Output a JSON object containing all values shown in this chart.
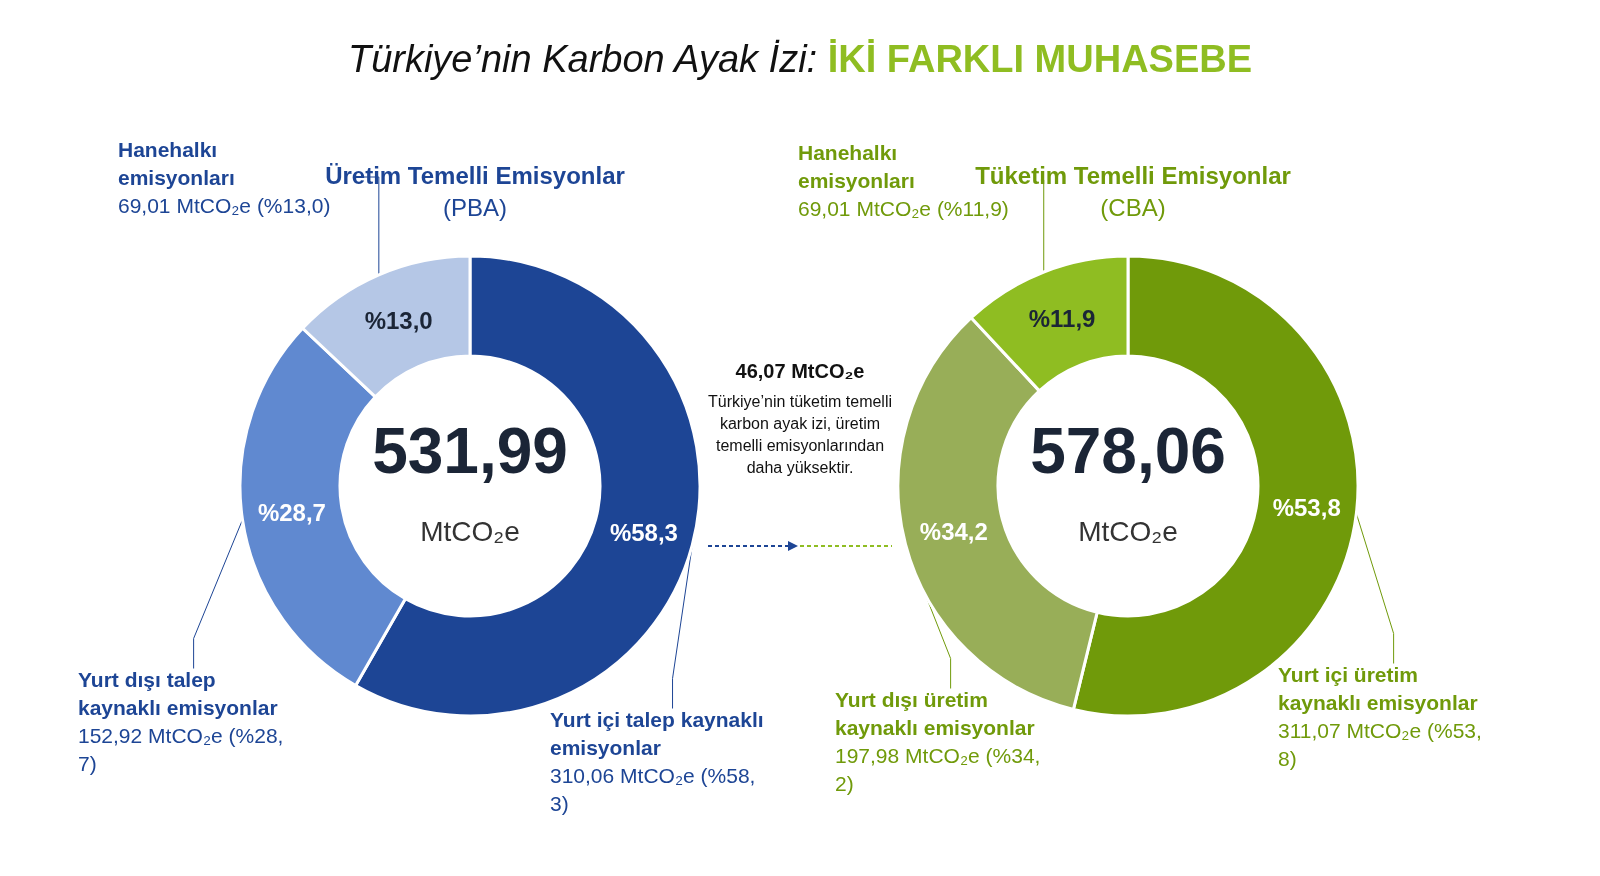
{
  "chart_data": [
    {
      "type": "other",
      "annotations": [
        "Türkiye’nin Karbon Ayak İzi:",
        "İKİ FARKLI MUHASEBE"
      ]
    },
    {
      "type": "donut",
      "title": "Üretim Temelli Emisyonlar",
      "subtitle": "(PBA)",
      "categories": [
        "Yurt içi talep kaynaklı emisyonlar",
        "Yurt dışı talep kaynaklı emisyonlar",
        "Hanehalkı emisyonları"
      ],
      "values": [
        310.06,
        152.92,
        69.01
      ],
      "colors": [
        "#1d4595",
        "#6089d0",
        "#b5c7e6"
      ],
      "value_labels": [
        "310,06 MtCO₂e (%58,3)",
        "152,92 MtCO₂e (%28,7)",
        "69,01 MtCO₂e (%13,0)"
      ],
      "annotations": [
        "531,99",
        "MtCO₂e",
        {
          "text": "%58,3",
          "x": "Yurt içi talep kaynaklı emisyonlar"
        },
        {
          "text": "%28,7",
          "x": "Yurt dışı talep kaynaklı emisyonlar"
        },
        {
          "text": "%13,0",
          "x": "Hanehalkı emisyonları"
        }
      ]
    },
    {
      "type": "other",
      "annotations": [
        "46,07 MtCO₂e",
        "Türkiye’nin tüketim temelli karbon ayak izi, üretim temelli emisyonlarından daha yüksektir."
      ]
    },
    {
      "type": "donut",
      "title": "Tüketim Temelli Emisyonlar",
      "subtitle": "(CBA)",
      "categories": [
        "Yurt içi üretim kaynaklı emisyonlar",
        "Yurt dışı üretim kaynaklı emisyonlar",
        "Hanehalkı emisyonları"
      ],
      "values": [
        311.07,
        197.98,
        69.01
      ],
      "colors": [
        "#709a0a",
        "#98ae58",
        "#8fbd22"
      ],
      "value_labels": [
        "311,07 MtCO₂e (%53,8)",
        "197,98 MtCO₂e (%34,2)",
        "69,01 MtCO₂e (%11,9)"
      ],
      "annotations": [
        "578,06",
        "MtCO₂e",
        {
          "text": "%53,8",
          "x": "Yurt içi üretim kaynaklı emisyonlar"
        },
        {
          "text": "%34,2",
          "x": "Yurt dışı üretim kaynaklı emisyonlar"
        },
        {
          "text": "%11,9",
          "x": "Hanehalkı emisyonları"
        }
      ]
    }
  ]
}
